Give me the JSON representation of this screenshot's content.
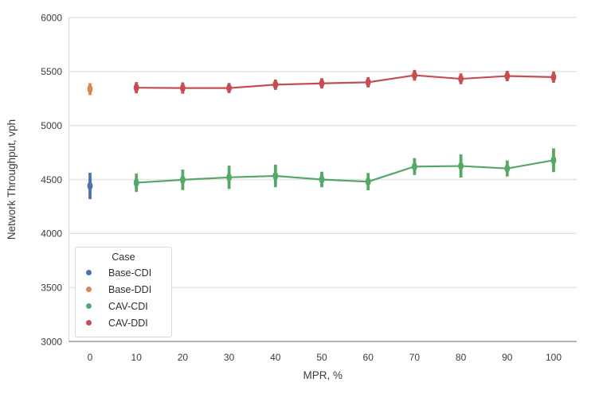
{
  "figure": {
    "background": "#ffffff",
    "text_color": "#3b3b3b",
    "grid_color": "#e3e3e3",
    "left_spine_color": "#d9d9d9",
    "bottom_spine_color": "#8f8f8f",
    "legend_border_color": "#d9d9d9"
  },
  "chart_data": {
    "type": "line",
    "title": "",
    "xlabel": "MPR, %",
    "ylabel": "Network Throughput, vph",
    "xticks": [
      0,
      10,
      20,
      30,
      40,
      50,
      60,
      70,
      80,
      90,
      100
    ],
    "yticks": [
      3000,
      3500,
      4000,
      4500,
      5000,
      5500,
      6000
    ],
    "ylim": [
      3000,
      6000
    ],
    "xlim": [
      -4.6,
      105.0
    ],
    "grid": "horizontal-only",
    "legend": {
      "title": "Case",
      "position": "lower-left"
    },
    "series": [
      {
        "name": "Base-CDI",
        "color": "#4C72B0",
        "x": [
          0
        ],
        "y": [
          4440
        ],
        "err_low": [
          4318
        ],
        "err_high": [
          4562
        ]
      },
      {
        "name": "Base-DDI",
        "color": "#DD8452",
        "x": [
          0
        ],
        "y": [
          5338
        ],
        "err_low": [
          5282
        ],
        "err_high": [
          5392
        ]
      },
      {
        "name": "CAV-CDI",
        "color": "#55A868",
        "x": [
          10,
          20,
          30,
          40,
          50,
          60,
          70,
          80,
          90,
          100
        ],
        "y": [
          4470,
          4497,
          4520,
          4533,
          4500,
          4480,
          4620,
          4625,
          4602,
          4678
        ],
        "err_low": [
          4385,
          4402,
          4412,
          4428,
          4428,
          4400,
          4542,
          4518,
          4528,
          4568
        ],
        "err_high": [
          4555,
          4592,
          4628,
          4638,
          4572,
          4560,
          4698,
          4732,
          4676,
          4788
        ]
      },
      {
        "name": "CAV-DDI",
        "color": "#C44E52",
        "x": [
          10,
          20,
          30,
          40,
          50,
          60,
          70,
          80,
          90,
          100
        ],
        "y": [
          5350,
          5347,
          5347,
          5378,
          5390,
          5400,
          5465,
          5432,
          5458,
          5448
        ],
        "err_low": [
          5298,
          5295,
          5300,
          5330,
          5342,
          5352,
          5415,
          5382,
          5410,
          5396
        ],
        "err_high": [
          5402,
          5399,
          5394,
          5426,
          5438,
          5448,
          5515,
          5482,
          5506,
          5500
        ]
      }
    ]
  }
}
